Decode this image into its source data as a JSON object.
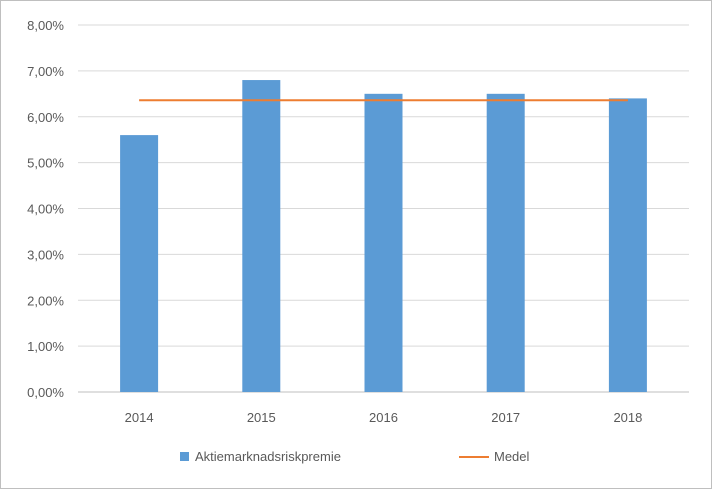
{
  "chart_data": {
    "type": "bar",
    "categories": [
      "2014",
      "2015",
      "2016",
      "2017",
      "2018"
    ],
    "series": [
      {
        "name": "Aktiemarknadsriskpremie",
        "type": "bar",
        "color": "#5b9bd5",
        "values": [
          0.056,
          0.068,
          0.065,
          0.065,
          0.064
        ]
      },
      {
        "name": "Medel",
        "type": "line",
        "color": "#ed7d31",
        "values": [
          0.0636,
          0.0636,
          0.0636,
          0.0636,
          0.0636
        ]
      }
    ],
    "ylim": [
      0,
      0.08
    ],
    "yticks": [
      0,
      0.01,
      0.02,
      0.03,
      0.04,
      0.05,
      0.06,
      0.07,
      0.08
    ],
    "ytick_labels": [
      "0,00%",
      "1,00%",
      "2,00%",
      "3,00%",
      "4,00%",
      "5,00%",
      "6,00%",
      "7,00%",
      "8,00%"
    ],
    "grid": true,
    "legend": "bottom",
    "gridline_color": "#d9d9d9",
    "axis_color": "#bfbfbf",
    "text_color": "#595959"
  }
}
